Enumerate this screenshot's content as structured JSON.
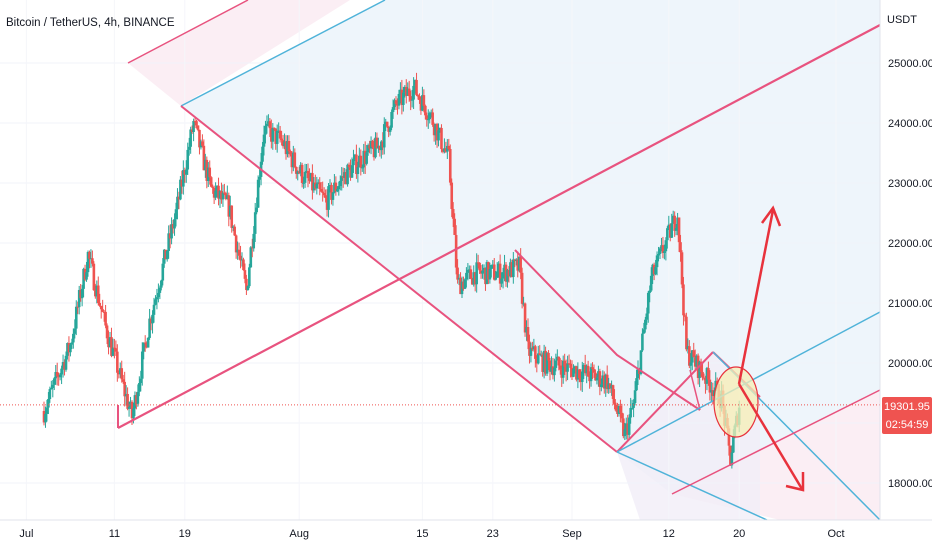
{
  "symbol_title": "Bitcoin / TetherUS, 4h, BINANCE",
  "currency": "USDT",
  "current_price": "19301.95",
  "countdown": "02:54:59",
  "colors": {
    "up": "#26a69a",
    "down": "#ef5350",
    "pink": "#e8537f",
    "blue": "#4fb3d9",
    "red_arrow": "#e8323c",
    "ellipse_fill": "#f6efb6",
    "pink_fill": "#fbeef4",
    "blue_fill": "#eef5fb"
  },
  "chart_data": {
    "type": "candlestick",
    "title": "Bitcoin / TetherUS, 4h, BINANCE",
    "ylabel": "USDT",
    "ylim": [
      17600,
      26500
    ],
    "y_ticks": [
      18000,
      19000,
      20000,
      21000,
      22000,
      23000,
      24000,
      25000
    ],
    "y_tick_labels": [
      "18000.00",
      "19000.00",
      "20000.00",
      "21000.00",
      "22000.00",
      "23000.00",
      "24000.00",
      "25000.00"
    ],
    "x_tick_labels": [
      "Jul",
      "11",
      "19",
      "Aug",
      "15",
      "23",
      "Sep",
      "12",
      "20",
      "Oct"
    ],
    "last_price": 19301.95,
    "path": [
      [
        "2022-07-03",
        19200
      ],
      [
        "2022-07-06",
        20300
      ],
      [
        "2022-07-08",
        21800
      ],
      [
        "2022-07-10",
        20600
      ],
      [
        "2022-07-12",
        19600
      ],
      [
        "2022-07-13",
        19100
      ],
      [
        "2022-07-15",
        20700
      ],
      [
        "2022-07-18",
        22500
      ],
      [
        "2022-07-20",
        24000
      ],
      [
        "2022-07-22",
        22900
      ],
      [
        "2022-07-24",
        22600
      ],
      [
        "2022-07-26",
        21200
      ],
      [
        "2022-07-28",
        23900
      ],
      [
        "2022-07-30",
        23700
      ],
      [
        "2022-08-01",
        23200
      ],
      [
        "2022-08-04",
        22700
      ],
      [
        "2022-08-06",
        23100
      ],
      [
        "2022-08-08",
        23400
      ],
      [
        "2022-08-10",
        23600
      ],
      [
        "2022-08-12",
        24300
      ],
      [
        "2022-08-14",
        24600
      ],
      [
        "2022-08-16",
        24100
      ],
      [
        "2022-08-18",
        23400
      ],
      [
        "2022-08-19",
        21300
      ],
      [
        "2022-08-21",
        21500
      ],
      [
        "2022-08-24",
        21500
      ],
      [
        "2022-08-26",
        21600
      ],
      [
        "2022-08-27",
        20200
      ],
      [
        "2022-08-29",
        20000
      ],
      [
        "2022-09-01",
        19900
      ],
      [
        "2022-09-03",
        19800
      ],
      [
        "2022-09-05",
        19700
      ],
      [
        "2022-09-07",
        18800
      ],
      [
        "2022-09-08",
        19300
      ],
      [
        "2022-09-10",
        21400
      ],
      [
        "2022-09-13",
        22500
      ],
      [
        "2022-09-14",
        20200
      ],
      [
        "2022-09-16",
        19800
      ],
      [
        "2022-09-18",
        19400
      ],
      [
        "2022-09-19",
        18400
      ],
      [
        "2022-09-20",
        19300
      ]
    ]
  }
}
